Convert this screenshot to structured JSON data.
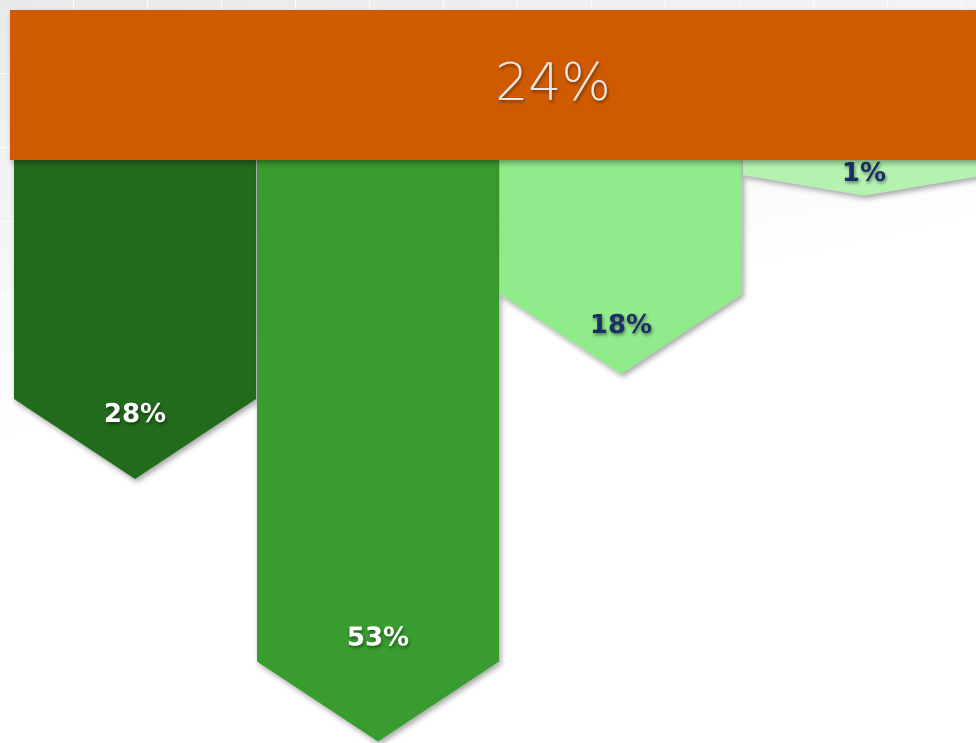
{
  "chart_data": {
    "type": "bar",
    "banner": {
      "value": 24,
      "label": "24%",
      "color": "#d05a00"
    },
    "values": [
      28,
      53,
      18,
      1
    ],
    "value_labels": [
      "28%",
      "53%",
      "18%",
      "1%"
    ],
    "colors": [
      "#236b1f",
      "#379c2f",
      "#90eb8a",
      "#b4f3af"
    ],
    "label_colors": [
      "#ffffff",
      "#ffffff",
      "#1f2d66",
      "#1f2d66"
    ]
  }
}
